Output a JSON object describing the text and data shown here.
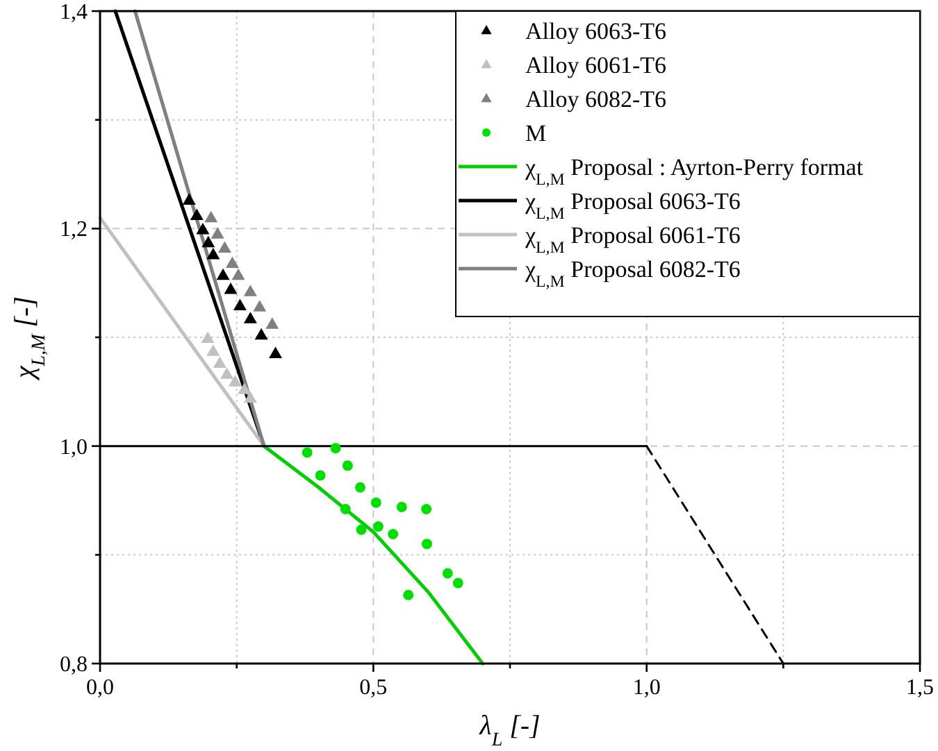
{
  "chart_data": {
    "type": "scatter",
    "xlabel": "λ$_{L}$ [-]",
    "ylabel": "χ$_{L,M}$ [-]",
    "xlim": [
      0,
      1.5
    ],
    "ylim": [
      0.8,
      1.4
    ],
    "xticks": [
      {
        "value": 0,
        "label": "0,0"
      },
      {
        "value": 0.25,
        "label": null
      },
      {
        "value": 0.5,
        "label": "0,5"
      },
      {
        "value": 0.75,
        "label": null
      },
      {
        "value": 1,
        "label": "1,0"
      },
      {
        "value": 1.25,
        "label": null
      },
      {
        "value": 1.5,
        "label": "1,5"
      }
    ],
    "yticks": [
      {
        "value": 0.8,
        "label": "0,8"
      },
      {
        "value": 0.9,
        "label": null
      },
      {
        "value": 1,
        "label": "1,0"
      },
      {
        "value": 1.1,
        "label": null
      },
      {
        "value": 1.2,
        "label": "1,2"
      },
      {
        "value": 1.3,
        "label": null
      },
      {
        "value": 1.4,
        "label": "1,4"
      }
    ],
    "grid": true,
    "legend": "top right",
    "series": [
      {
        "name": "Alloy 6063-T6",
        "marker": "triangle",
        "color": "#000000",
        "x": [
          0.163,
          0.177,
          0.188,
          0.198,
          0.207,
          0.225,
          0.239,
          0.256,
          0.275,
          0.295,
          0.321
        ],
        "values": [
          1.226,
          1.212,
          1.199,
          1.187,
          1.176,
          1.157,
          1.144,
          1.129,
          1.117,
          1.102,
          1.085
        ]
      },
      {
        "name": "Alloy 6061-T6",
        "marker": "triangle",
        "color": "#c0c0c0",
        "x": [
          0.197,
          0.207,
          0.219,
          0.232,
          0.247,
          0.264,
          0.275
        ],
        "values": [
          1.099,
          1.087,
          1.076,
          1.066,
          1.059,
          1.052,
          1.044
        ]
      },
      {
        "name": "Alloy 6082-T6",
        "marker": "triangle",
        "color": "#808080",
        "x": [
          0.203,
          0.215,
          0.228,
          0.242,
          0.253,
          0.275,
          0.292,
          0.315
        ],
        "values": [
          1.21,
          1.195,
          1.182,
          1.168,
          1.157,
          1.142,
          1.128,
          1.112
        ]
      },
      {
        "name": "M",
        "marker": "circle",
        "color": "#00dd00",
        "x": [
          0.379,
          0.431,
          0.403,
          0.453,
          0.476,
          0.505,
          0.552,
          0.597,
          0.449,
          0.478,
          0.509,
          0.536,
          0.598,
          0.636,
          0.655,
          0.564
        ],
        "values": [
          0.994,
          0.998,
          0.973,
          0.982,
          0.962,
          0.948,
          0.944,
          0.942,
          0.942,
          0.923,
          0.926,
          0.919,
          0.91,
          0.883,
          0.874,
          0.863
        ]
      },
      {
        "name": "χ$_{L,M}$ Proposal : Ayrton-Perry format",
        "type": "line",
        "color": "#00cc00",
        "x": [
          0.3,
          0.4,
          0.5,
          0.6,
          0.7
        ],
        "values": [
          1.0,
          0.962,
          0.921,
          0.866,
          0.8
        ]
      },
      {
        "name": "χ$_{L,M}$ Proposal 6063-T6",
        "type": "line",
        "color": "#000000",
        "x": [
          0.028,
          0.3
        ],
        "values": [
          1.4,
          1.0
        ]
      },
      {
        "name": "χ$_{L,M}$ Proposal 6061-T6",
        "type": "line",
        "color": "#c0c0c0",
        "x": [
          0,
          0.3
        ],
        "values": [
          1.21,
          1.0
        ]
      },
      {
        "name": "χ$_{L,M}$ Proposal 6082-T6",
        "type": "line",
        "color": "#808080",
        "x": [
          0.064,
          0.3
        ],
        "values": [
          1.4,
          1.0
        ]
      },
      {
        "type": "line",
        "color": "#000000",
        "x": [
          0,
          1
        ],
        "values": [
          1.0,
          1.0
        ]
      },
      {
        "type": "line",
        "color": "#000000",
        "line_style": "dashed",
        "x": [
          1,
          1.25
        ],
        "values": [
          1.0,
          0.8
        ]
      }
    ]
  }
}
